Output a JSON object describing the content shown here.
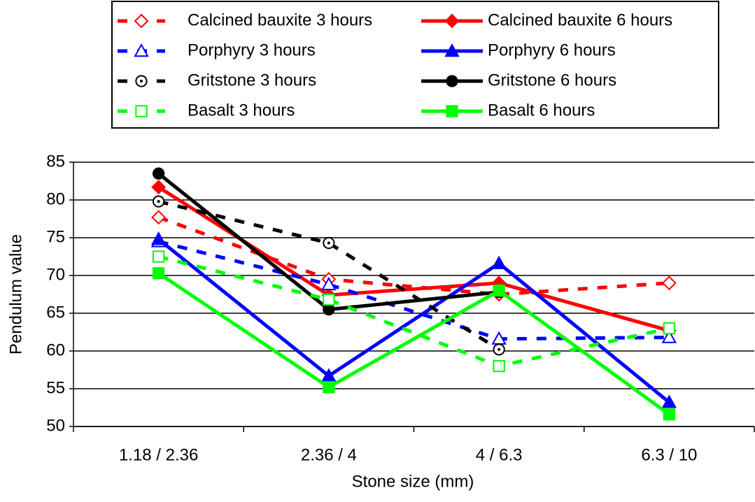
{
  "chart_data": {
    "type": "line",
    "x_label": "Stone size (mm)",
    "y_label": "Pendulum value",
    "categories": [
      "1.18 / 2.36",
      "2.36 / 4",
      "4 / 6.3",
      "6.3 / 10"
    ],
    "ylim": [
      50,
      85
    ],
    "yticks": [
      50,
      55,
      60,
      65,
      70,
      75,
      80,
      85
    ],
    "grid": true,
    "series": [
      {
        "name": "Calcined bauxite 3 hours",
        "color": "#ff0000",
        "dashed": true,
        "marker": "diamond",
        "filled": false,
        "values": [
          77.7,
          69.5,
          67.5,
          69.0
        ]
      },
      {
        "name": "Calcined bauxite 6 hours",
        "color": "#ff0000",
        "dashed": false,
        "marker": "diamond",
        "filled": true,
        "values": [
          81.7,
          67.4,
          69.0,
          62.7
        ]
      },
      {
        "name": "Porphyry 3 hours",
        "color": "#0000ff",
        "dashed": true,
        "marker": "triangle",
        "filled": false,
        "values": [
          74.5,
          68.8,
          61.6,
          61.8
        ]
      },
      {
        "name": "Porphyry 6 hours",
        "color": "#0000ff",
        "dashed": false,
        "marker": "triangle",
        "filled": true,
        "values": [
          74.8,
          56.7,
          71.6,
          53.2
        ]
      },
      {
        "name": "Gritstone 3 hours",
        "color": "#000000",
        "dashed": true,
        "marker": "circle-dot",
        "filled": false,
        "values": [
          79.8,
          74.3,
          60.2,
          null
        ]
      },
      {
        "name": "Gritstone 6 hours",
        "color": "#000000",
        "dashed": false,
        "marker": "circle",
        "filled": true,
        "values": [
          83.5,
          65.5,
          67.8,
          null
        ]
      },
      {
        "name": "Basalt 3 hours",
        "color": "#00ff00",
        "dashed": true,
        "marker": "square",
        "filled": false,
        "values": [
          72.5,
          66.8,
          58.0,
          63.0
        ]
      },
      {
        "name": "Basalt 6 hours",
        "color": "#00ff00",
        "dashed": false,
        "marker": "square",
        "filled": true,
        "values": [
          70.3,
          55.2,
          68.0,
          51.6
        ]
      }
    ]
  }
}
